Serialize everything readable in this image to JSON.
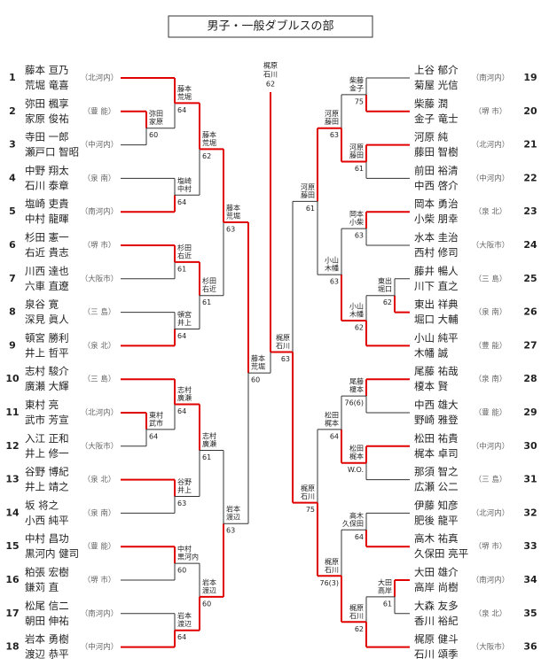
{
  "title": "男子・一般ダブルスの部",
  "left": {
    "entries": [
      {
        "seed": 1,
        "players": [
          "藤本 亘乃",
          "荒堀 竜喜"
        ],
        "region": "（北河内）"
      },
      {
        "seed": 2,
        "players": [
          "弥田 楓享",
          "家原 俊祐"
        ],
        "region": "（豊 能）"
      },
      {
        "seed": 3,
        "players": [
          "寺田 一郎",
          "瀬戸口 智昭"
        ],
        "region": "（中河内）"
      },
      {
        "seed": 4,
        "players": [
          "中野 翔太",
          "石川 泰章"
        ],
        "region": "（泉 南）"
      },
      {
        "seed": 5,
        "players": [
          "塩崎 吏貴",
          "中村 龍暉"
        ],
        "region": "（南河内）"
      },
      {
        "seed": 6,
        "players": [
          "杉田 憲一",
          "右近 貴志"
        ],
        "region": "（堺 市）"
      },
      {
        "seed": 7,
        "players": [
          "川西 達也",
          "六車 直遼"
        ],
        "region": "（大阪市）"
      },
      {
        "seed": 8,
        "players": [
          "泉谷 寛",
          "深見 眞人"
        ],
        "region": "（三 島）"
      },
      {
        "seed": 9,
        "players": [
          "頓宮 勝利",
          "井上 哲平"
        ],
        "region": "（泉 北）"
      },
      {
        "seed": 10,
        "players": [
          "志村 駿介",
          "廣瀬 大輝"
        ],
        "region": "（三 島）"
      },
      {
        "seed": 11,
        "players": [
          "東村 亮",
          "武市 芳宣"
        ],
        "region": "（北河内）"
      },
      {
        "seed": 12,
        "players": [
          "入江 正和",
          "井上 修一"
        ],
        "region": "（大阪市）"
      },
      {
        "seed": 13,
        "players": [
          "谷野 博紀",
          "井上 靖之"
        ],
        "region": "（泉 北）"
      },
      {
        "seed": 14,
        "players": [
          "坂 将之",
          "小西 純平"
        ],
        "region": "（泉 南）"
      },
      {
        "seed": 15,
        "players": [
          "中村 昌功",
          "黒河内 健司"
        ],
        "region": "（豊 能）"
      },
      {
        "seed": 16,
        "players": [
          "粕張 宏樹",
          "鎌苅 直"
        ],
        "region": "（堺 市）"
      },
      {
        "seed": 17,
        "players": [
          "松尾 信二",
          "朝田 伸祐"
        ],
        "region": "（南河内）"
      },
      {
        "seed": 18,
        "players": [
          "岩本 勇樹",
          "渡辺 恭平"
        ],
        "region": "（中河内）"
      }
    ],
    "matches": [
      {
        "winner": [
          "弥田",
          "家原"
        ],
        "score": "60"
      },
      {
        "winner": [
          "藤本",
          "荒堀"
        ],
        "score": "64"
      },
      {
        "winner": [
          "塩崎",
          "中村"
        ],
        "score": "64"
      },
      {
        "winner": [
          "藤本",
          "荒堀"
        ],
        "score": "62"
      },
      {
        "winner": [
          "杉田",
          "右近"
        ],
        "score": "61"
      },
      {
        "winner": [
          "頓宮",
          "井上"
        ],
        "score": "64"
      },
      {
        "winner": [
          "杉田",
          "右近"
        ],
        "score": "61"
      },
      {
        "winner": [
          "藤本",
          "荒堀"
        ],
        "score": "63"
      },
      {
        "winner": [
          "東村",
          "武市"
        ],
        "score": "64"
      },
      {
        "winner": [
          "志村",
          "廣瀬"
        ],
        "score": "64"
      },
      {
        "winner": [
          "谷野",
          "井上"
        ],
        "score": "63"
      },
      {
        "winner": [
          "志村",
          "廣瀬"
        ],
        "score": "61"
      },
      {
        "winner": [
          "中村",
          "黒河内"
        ],
        "score": "60"
      },
      {
        "winner": [
          "岩本",
          "渡辺"
        ],
        "score": "64"
      },
      {
        "winner": [
          "岩本",
          "渡辺"
        ],
        "score": "60"
      },
      {
        "winner": [
          "岩本",
          "渡辺"
        ],
        "score": "63"
      },
      {
        "winner": [
          "藤本",
          "荒堀"
        ],
        "score": "60"
      }
    ]
  },
  "right": {
    "entries": [
      {
        "seed": 19,
        "players": [
          "上谷 郁介",
          "菊屋 光信"
        ],
        "region": "（南河内）"
      },
      {
        "seed": 20,
        "players": [
          "柴藤 潤",
          "金子 竜士"
        ],
        "region": "（堺 市）"
      },
      {
        "seed": 21,
        "players": [
          "河原 純",
          "藤田 智樹"
        ],
        "region": "（北河内）"
      },
      {
        "seed": 22,
        "players": [
          "前田 裕清",
          "中西 啓介"
        ],
        "region": "（中河内）"
      },
      {
        "seed": 23,
        "players": [
          "岡本 勇治",
          "小柴 朋幸"
        ],
        "region": "（泉 北）"
      },
      {
        "seed": 24,
        "players": [
          "水本 圭治",
          "西村 修司"
        ],
        "region": "（大阪市）"
      },
      {
        "seed": 25,
        "players": [
          "藤井 暢人",
          "川下 直之"
        ],
        "region": "（三 島）"
      },
      {
        "seed": 26,
        "players": [
          "東出 祥典",
          "堀口 大輔"
        ],
        "region": "（泉 南）"
      },
      {
        "seed": 27,
        "players": [
          "小山 純平",
          "木幡 誠"
        ],
        "region": "（豊 能）"
      },
      {
        "seed": 28,
        "players": [
          "尾藤 祐哉",
          "榎本 賢"
        ],
        "region": "（泉 南）"
      },
      {
        "seed": 29,
        "players": [
          "中西 雄大",
          "野崎 雅登"
        ],
        "region": "（豊 能）"
      },
      {
        "seed": 30,
        "players": [
          "松田 祐貴",
          "梶本 卓司"
        ],
        "region": "（中河内）"
      },
      {
        "seed": 31,
        "players": [
          "那須 智之",
          "広瀬 公二"
        ],
        "region": "（三 島）"
      },
      {
        "seed": 32,
        "players": [
          "伊藤 知彦",
          "肥後 龍平"
        ],
        "region": "（北河内）"
      },
      {
        "seed": 33,
        "players": [
          "高木 祐真",
          "久保田 亮平"
        ],
        "region": "（堺 市）"
      },
      {
        "seed": 34,
        "players": [
          "大田 雄介",
          "高岸 尚樹"
        ],
        "region": "（南河内）"
      },
      {
        "seed": 35,
        "players": [
          "大森 友多",
          "香川 裕紀"
        ],
        "region": "（泉 北）"
      },
      {
        "seed": 36,
        "players": [
          "梶原 健斗",
          "石川 頌季"
        ],
        "region": "（大阪市）"
      }
    ],
    "matches": [
      {
        "winner": [
          "柴藤",
          "金子"
        ],
        "score": "75"
      },
      {
        "winner": [
          "河原",
          "藤田"
        ],
        "score": "61"
      },
      {
        "winner": [
          "河原",
          "藤田"
        ],
        "score": "63"
      },
      {
        "winner": [
          "岡本",
          "小柴"
        ],
        "score": "63"
      },
      {
        "winner": [
          "東出",
          "堀口"
        ],
        "score": "62"
      },
      {
        "winner": [
          "小山",
          "木幡"
        ],
        "score": "62"
      },
      {
        "winner": [
          "小山",
          "木幡"
        ],
        "score": "63"
      },
      {
        "winner": [
          "河原",
          "藤田"
        ],
        "score": "61"
      },
      {
        "winner": [
          "尾藤",
          "榎本"
        ],
        "score": "76(6)"
      },
      {
        "winner": [
          "松田",
          "梶本"
        ],
        "score": "W.O."
      },
      {
        "winner": [
          "松田",
          "梶本"
        ],
        "score": "64"
      },
      {
        "winner": [
          "高木",
          "久保田"
        ],
        "score": "64"
      },
      {
        "winner": [
          "大田",
          "高岸"
        ],
        "score": "61"
      },
      {
        "winner": [
          "梶原",
          "石川"
        ],
        "score": "62"
      },
      {
        "winner": [
          "梶原",
          "石川"
        ],
        "score": "76(3)"
      },
      {
        "winner": [
          "梶原",
          "石川"
        ],
        "score": "75"
      },
      {
        "winner": [
          "梶原",
          "石川"
        ],
        "score": "63"
      }
    ]
  },
  "final": {
    "winner": [
      "梶原",
      "石川"
    ],
    "score": "62"
  }
}
